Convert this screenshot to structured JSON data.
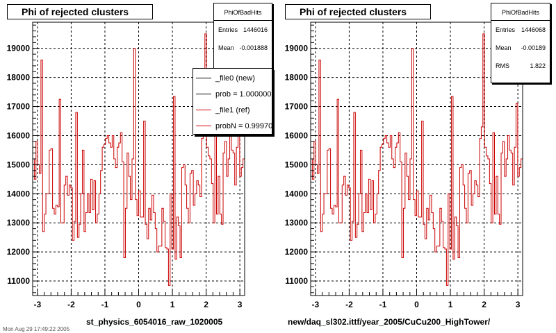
{
  "colors": {
    "hist": "#cc0000",
    "frame": "#000000",
    "grid": "#000000",
    "background": "#ffffff"
  },
  "stamp": "Mon Aug 29 17:49:22 2005",
  "panels": [
    {
      "title": "Phi of rejected clusters",
      "stats": {
        "title": "PhiOfBadHits",
        "rows": [
          {
            "label": "Entries",
            "value": "1446016"
          },
          {
            "label": "Mean",
            "value": "-0.001888"
          }
        ]
      },
      "legend": [
        {
          "label": "_file0 (new)",
          "color": "#000000"
        },
        {
          "label": "prob = 1.000000",
          "color": "#000000"
        },
        {
          "label": "_file1 (ref)",
          "color": "#cc0000"
        },
        {
          "label": "probN = 0.999700",
          "color": "#cc0000"
        }
      ],
      "xtitle": "st_physics_6054016_raw_1020005"
    },
    {
      "title": "Phi of rejected clusters",
      "stats": {
        "title": "PhiOfBadHits",
        "rows": [
          {
            "label": "Entries",
            "value": "1446068"
          },
          {
            "label": "Mean",
            "value": "-0.00189"
          },
          {
            "label": "RMS",
            "value": "1.822"
          }
        ]
      },
      "legend": [],
      "xtitle": "new/daq_sl302.ittf/year_2005/CuCu200_HighTower/"
    }
  ],
  "chart_data": [
    {
      "type": "histogram-step",
      "title": "Phi of rejected clusters",
      "xlabel": "st_physics_6054016_raw_1020005",
      "ylabel": "",
      "xlim": [
        -3.1416,
        3.1416
      ],
      "ylim": [
        10500,
        19900
      ],
      "xticks": [
        -3,
        -2,
        -1,
        0,
        1,
        2,
        3
      ],
      "yticks": [
        11000,
        12000,
        13000,
        14000,
        15000,
        16000,
        17000,
        18000,
        19000
      ],
      "grid": true,
      "series": [
        {
          "name": "_file1 (ref)",
          "color": "#cc0000",
          "values": [
            15200,
            14500,
            15800,
            15000,
            14700,
            18600,
            12700,
            13300,
            14000,
            14000,
            15500,
            15550,
            13500,
            13300,
            13600,
            13550,
            17250,
            13000,
            13000,
            14300,
            14600,
            13950,
            14300,
            14200,
            12400,
            13050,
            16800,
            12500,
            12950,
            14000,
            15500,
            12700,
            13350,
            14000,
            13350,
            14500,
            13450,
            14450,
            13000,
            13300,
            14000,
            14800,
            15600,
            15700,
            15900,
            16000,
            15750,
            15600,
            16000,
            15200,
            14900,
            15600,
            15750,
            16100,
            15100,
            11800,
            13500,
            15400,
            14600,
            13800,
            15200,
            19000,
            13800,
            13250,
            14100,
            13200,
            13200,
            16500,
            12950,
            12450,
            13500,
            13100,
            13950,
            13350,
            12800,
            12000,
            12200,
            12200,
            13500,
            13050,
            12150,
            12100,
            10850,
            14000,
            12100,
            17350,
            11750,
            13200,
            12900,
            11800,
            14900,
            15000,
            14300,
            13500,
            13000,
            14700,
            14800,
            13600,
            14000,
            14450,
            14300,
            13900,
            15900,
            16300,
            19500,
            15600,
            15300,
            15200,
            14350,
            13000,
            16100,
            13300,
            14600,
            13300,
            12950,
            15400,
            15800,
            14600,
            15200,
            16000,
            15500,
            15400,
            14300,
            15600,
            17100,
            14600,
            14900,
            15200
          ]
        }
      ]
    },
    {
      "type": "histogram-step",
      "title": "Phi of rejected clusters",
      "xlabel": "new/daq_sl302.ittf/year_2005/CuCu200_HighTower/",
      "ylabel": "",
      "xlim": [
        -3.1416,
        3.1416
      ],
      "ylim": [
        10500,
        19900
      ],
      "xticks": [
        -3,
        -2,
        -1,
        0,
        1,
        2,
        3
      ],
      "yticks": [
        11000,
        12000,
        13000,
        14000,
        15000,
        16000,
        17000,
        18000,
        19000
      ],
      "grid": true,
      "series": [
        {
          "name": "",
          "color": "#cc0000",
          "values": [
            15200,
            14500,
            15800,
            15000,
            14700,
            18600,
            12700,
            13300,
            14000,
            14000,
            15500,
            15550,
            13500,
            13300,
            13600,
            13550,
            17250,
            13000,
            13000,
            14300,
            14600,
            13950,
            14300,
            14200,
            12400,
            13050,
            16800,
            12500,
            12950,
            14000,
            15500,
            12700,
            13350,
            14000,
            13350,
            14500,
            13450,
            14450,
            13000,
            13300,
            14000,
            14800,
            15600,
            15700,
            15900,
            16000,
            15750,
            15600,
            16000,
            15200,
            14900,
            15600,
            15750,
            16100,
            15100,
            11800,
            13500,
            15400,
            14600,
            13800,
            15200,
            19000,
            13800,
            13250,
            14100,
            13200,
            13200,
            16500,
            12950,
            12450,
            13500,
            13100,
            13950,
            13350,
            12800,
            12000,
            12200,
            12200,
            13500,
            13050,
            12150,
            12100,
            10850,
            14000,
            12100,
            17350,
            11750,
            13200,
            12900,
            11800,
            14900,
            15000,
            14300,
            13500,
            13000,
            14700,
            14800,
            13600,
            14000,
            14450,
            14300,
            13900,
            15900,
            16300,
            19500,
            15600,
            15300,
            15200,
            14350,
            13000,
            16100,
            13300,
            14600,
            13300,
            12950,
            15400,
            15800,
            14600,
            15200,
            16000,
            15500,
            15400,
            14300,
            15600,
            17100,
            14600,
            14900,
            15200
          ]
        }
      ]
    }
  ]
}
